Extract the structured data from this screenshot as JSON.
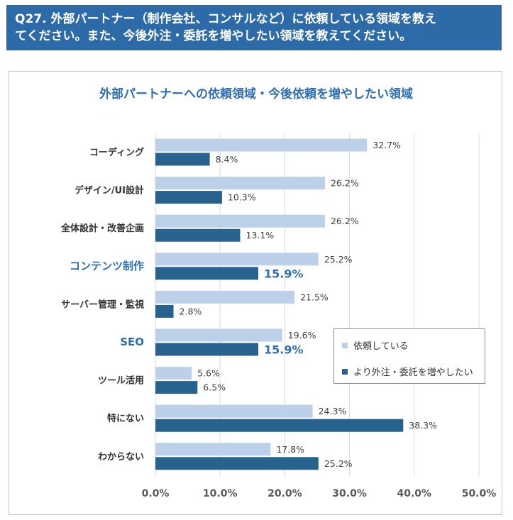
{
  "question": {
    "line1": "Q27. 外部パートナー（制作会社、コンサルなど）に依頼している領域を教え",
    "line2": "てください。また、今後外注・委託を増やしたい領域を教えてください。"
  },
  "colors": {
    "banner": "#2d6aa8",
    "current": "#bdd0ea",
    "future": "#28628e",
    "highlight": "#2e6fb1",
    "label": "#333333",
    "grid": "#d9d9d9"
  },
  "chart_data": {
    "type": "bar",
    "orientation": "horizontal",
    "title": "外部パートナーへの依頼領域・今後依頼を増やしたい領域",
    "categories": [
      "コーディング",
      "デザイン/UI設計",
      "全体設計・改善企画",
      "コンテンツ制作",
      "サーバー管理・監視",
      "SEO",
      "ツール活用",
      "特にない",
      "わからない"
    ],
    "highlighted_categories": [
      "コンテンツ制作",
      "SEO"
    ],
    "series": [
      {
        "name": "依頼している",
        "values": [
          32.7,
          26.2,
          26.2,
          25.2,
          21.5,
          19.6,
          5.6,
          24.3,
          17.8
        ],
        "labels": [
          "32.7%",
          "26.2%",
          "26.2%",
          "25.2%",
          "21.5%",
          "19.6%",
          "5.6%",
          "24.3%",
          "17.8%"
        ]
      },
      {
        "name": "より外注・委託を増やしたい",
        "values": [
          8.4,
          10.3,
          13.1,
          15.9,
          2.8,
          15.9,
          6.5,
          38.3,
          25.2
        ],
        "labels": [
          "8.4%",
          "10.3%",
          "13.1%",
          "15.9%",
          "2.8%",
          "15.9%",
          "6.5%",
          "38.3%",
          "25.2%"
        ]
      }
    ],
    "xlim": [
      0,
      50
    ],
    "xticks": [
      "0.0%",
      "10.0%",
      "20.0%",
      "30.0%",
      "40.0%",
      "50.0%"
    ],
    "grid": true,
    "legend_position": "right-middle"
  }
}
